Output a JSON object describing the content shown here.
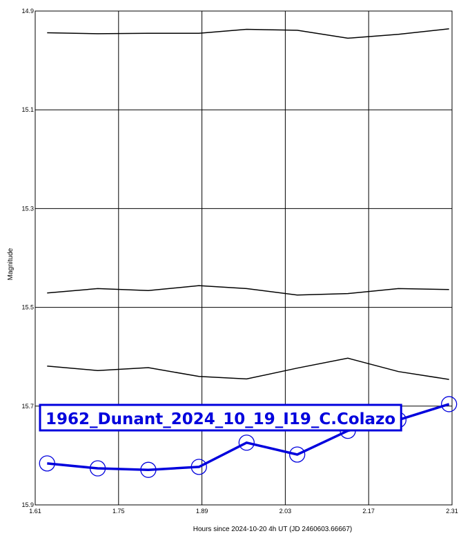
{
  "chart_data": {
    "type": "line",
    "title": "1962_Dunant_2024_10_19_I19_C.Colazo",
    "xlabel": "Hours since 2024-10-20 4h UT (JD 2460603.66667)",
    "ylabel": "Magnitude",
    "xlim": [
      1.61,
      2.31
    ],
    "ylim": [
      15.9,
      14.9
    ],
    "y_inverted": true,
    "grid": true,
    "x_ticks": [
      "1.61",
      "1.75",
      "1.89",
      "2.03",
      "2.17",
      "2.31"
    ],
    "y_ticks": [
      "14.9",
      "15.1",
      "15.3",
      "15.5",
      "15.7",
      "15.9"
    ],
    "x": [
      1.63,
      1.715,
      1.8,
      1.885,
      1.965,
      2.05,
      2.135,
      2.22,
      2.305
    ],
    "series": [
      {
        "role": "comparison",
        "values": [
          14.944,
          14.946,
          14.945,
          14.945,
          14.937,
          14.939,
          14.955,
          14.947,
          14.936
        ]
      },
      {
        "role": "comparison",
        "values": [
          15.471,
          15.462,
          15.466,
          15.456,
          15.462,
          15.475,
          15.472,
          15.462,
          15.464
        ]
      },
      {
        "role": "comparison",
        "values": [
          15.619,
          15.628,
          15.622,
          15.64,
          15.645,
          15.623,
          15.603,
          15.63,
          15.646
        ]
      },
      {
        "role": "target",
        "values": [
          15.816,
          15.826,
          15.829,
          15.823,
          15.774,
          15.798,
          15.75,
          15.728,
          15.696
        ]
      }
    ],
    "colors": {
      "target": "#0000dd",
      "comparison": "#000000",
      "grid": "#000000"
    }
  }
}
